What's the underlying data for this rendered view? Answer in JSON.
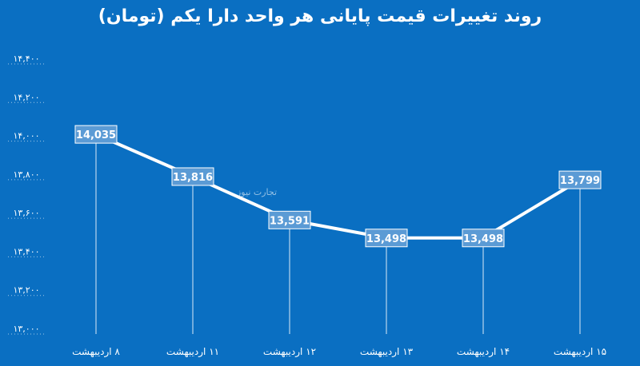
{
  "chart_data": {
    "type": "line",
    "title": "روند تغییرات قیمت پایانی هر واحد دارا یکم (تومان)",
    "categories": [
      "۸ اردیبهشت",
      "۱۱ اردیبهشت",
      "۱۲ اردیبهشت",
      "۱۳ اردیبهشت",
      "۱۴ اردیبهشت",
      "۱۵ اردیبهشت"
    ],
    "series": [
      {
        "values": [
          14035,
          13816,
          13591,
          13498,
          13498,
          13799
        ]
      }
    ],
    "data_labels": [
      "14,035",
      "13,816",
      "13,591",
      "13,498",
      "13,498",
      "13,799"
    ],
    "y_ticks": [
      13000,
      13200,
      13400,
      13600,
      13800,
      14000,
      14200,
      14400
    ],
    "y_tick_labels": [
      "۱۳,۰۰۰",
      "۱۳,۲۰۰",
      "۱۳,۴۰۰",
      "۱۳,۶۰۰",
      "۱۳,۸۰۰",
      "۱۴,۰۰۰",
      "۱۴,۲۰۰",
      "۱۴,۴۰۰"
    ],
    "ylim": [
      13000,
      14500
    ],
    "grid": false,
    "colors": {
      "background": "#0a6fc2",
      "line": "#ffffff",
      "label_box": "#5b9bd5",
      "text": "#ffffff"
    }
  },
  "watermark": "تجارت نیوز"
}
